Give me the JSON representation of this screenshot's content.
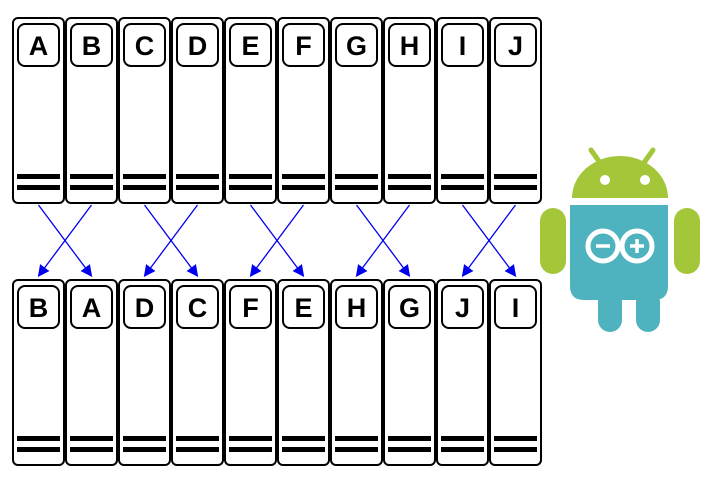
{
  "top_row": [
    "A",
    "B",
    "C",
    "D",
    "E",
    "F",
    "G",
    "H",
    "I",
    "J"
  ],
  "bottom_row": [
    "B",
    "A",
    "D",
    "C",
    "F",
    "E",
    "H",
    "G",
    "J",
    "I"
  ]
}
